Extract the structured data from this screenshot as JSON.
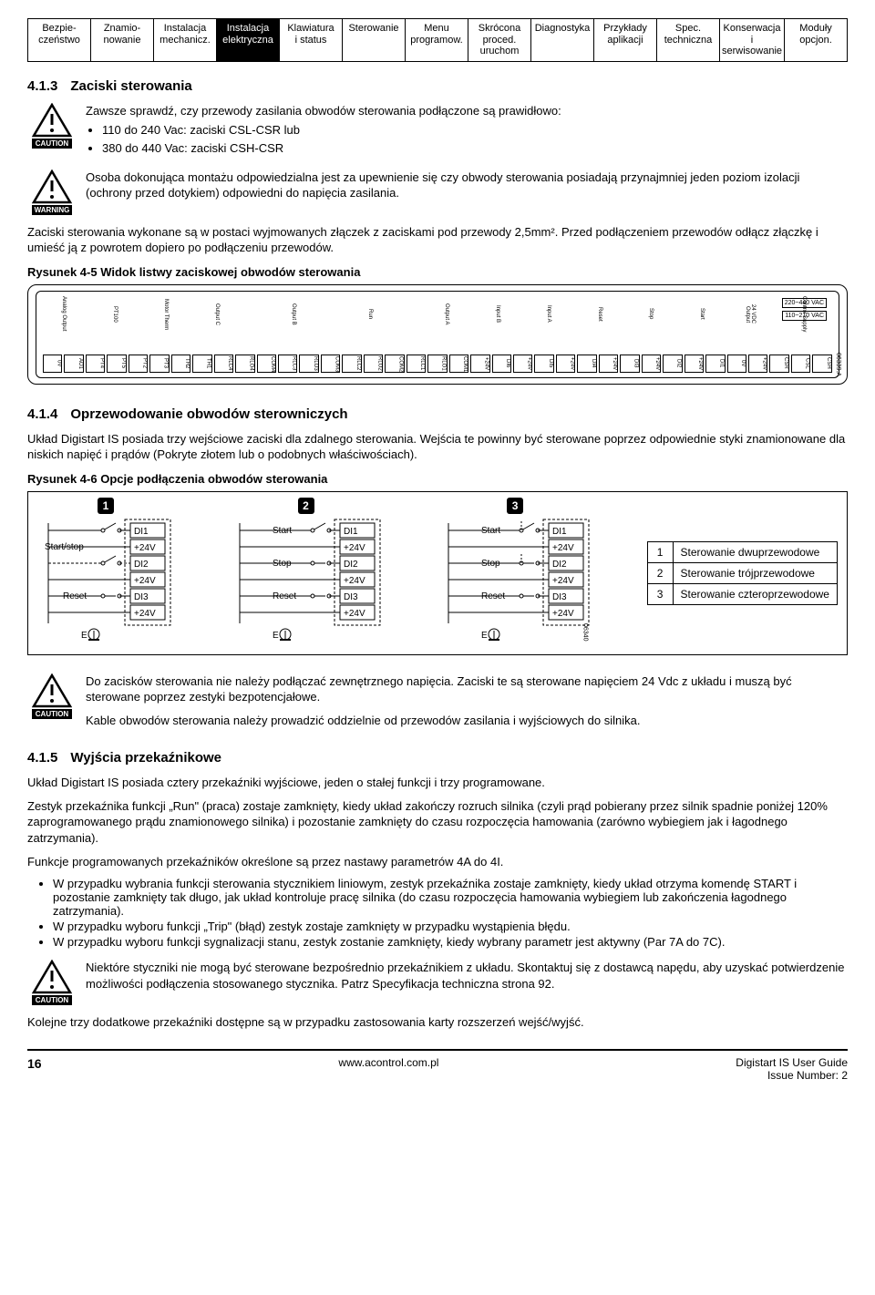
{
  "topnav": [
    {
      "l1": "Bezpie-",
      "l2": "czeństwo"
    },
    {
      "l1": "Znamio-",
      "l2": "nowanie"
    },
    {
      "l1": "Instalacja",
      "l2": "mechanicz."
    },
    {
      "l1": "Instalacja",
      "l2": "elektryczna"
    },
    {
      "l1": "Klawiatura",
      "l2": "i status"
    },
    {
      "l1": "Sterowanie",
      "l2": ""
    },
    {
      "l1": "Menu",
      "l2": "programow."
    },
    {
      "l1": "Skrócona",
      "l2": "proced. uruchom"
    },
    {
      "l1": "Diagnostyka",
      "l2": ""
    },
    {
      "l1": "Przykłady",
      "l2": "aplikacji"
    },
    {
      "l1": "Spec.",
      "l2": "techniczna"
    },
    {
      "l1": "Konserwacja i",
      "l2": "serwisowanie"
    },
    {
      "l1": "Moduły",
      "l2": "opcjon."
    }
  ],
  "active_tab_index": 3,
  "sec413": {
    "num": "4.1.3",
    "title": "Zaciski sterowania",
    "caution_label": "CAUTION",
    "warning_label": "WARNING",
    "caution_intro": "Zawsze sprawdź, czy przewody zasilania obwodów sterowania podłączone są prawidłowo:",
    "caution_b1": "110 do 240 Vac: zaciski CSL-CSR lub",
    "caution_b2": "380 do 440 Vac: zaciski CSH-CSR",
    "warning_text": "Osoba dokonująca montażu odpowiedzialna jest za upewnienie się czy obwody sterowania posiadają przynajmniej jeden poziom izolacji (ochrony przed dotykiem) odpowiedni do napięcia zasilania.",
    "para": "Zaciski sterowania wykonane są w postaci wyjmowanych złączek z zaciskami pod przewody 2,5mm². Przed podłączeniem przewodów odłącz złączkę i umieść ją z powrotem dopiero po podłączeniu przewodów.",
    "figcap": "Rysunek 4-5 Widok listwy zaciskowej obwodów sterowania"
  },
  "terminal_labels_top": [
    "Analog Output",
    "",
    "PT100",
    "",
    "Motor Therm",
    "",
    "Output C",
    "",
    "",
    "Output B",
    "",
    "",
    "Run",
    "",
    "",
    "Output A",
    "",
    "Input B",
    "",
    "Input A",
    "",
    "Reset",
    "",
    "Stop",
    "",
    "Start",
    "",
    "24 VDC Output",
    "",
    "Control Supply",
    ""
  ],
  "terminal_labels_bot": [
    "0V",
    "AO1",
    "PT4",
    "PT5",
    "PT2",
    "PT3",
    "TH2",
    "TH1",
    "RLC4",
    "RLO4",
    "COM4",
    "RLC3",
    "RLO3",
    "COM3",
    "RLC2",
    "RLO2",
    "COM2",
    "RLC1",
    "RLO1",
    "COM1",
    "+24V",
    "DI6",
    "+24V",
    "DI5",
    "+24V",
    "DI4",
    "+24V",
    "DI3",
    "+24V",
    "DI2",
    "+24V",
    "DI1",
    "0V",
    "+24V",
    "CSR",
    "CSL",
    "CSH"
  ],
  "voltage_lines": {
    "hi": "220~440 VAC",
    "lo": "110~210 VAC"
  },
  "strip_partnum": "06339.A",
  "sec414": {
    "num": "4.1.4",
    "title": "Oprzewodowanie obwodów sterowniczych",
    "intro": "Układ Digistart IS posiada trzy wejściowe zaciski dla zdalnego sterowania. Wejścia te powinny być sterowane poprzez odpowiednie styki znamionowane dla niskich napięć i prądów (Pokryte złotem lub o podobnych właściwościach).",
    "figcap": "Rysunek 4-6 Opcje podłączenia obwodów sterowania"
  },
  "circuit_terms": [
    "DI1",
    "+24V",
    "DI2",
    "+24V",
    "DI3",
    "+24V"
  ],
  "circuit_partnum": "06340.A",
  "circuit_labels": {
    "startstop": "Start/stop",
    "reset": "Reset",
    "start": "Start",
    "stop": "Stop",
    "e": "E"
  },
  "legend": [
    {
      "n": "1",
      "t": "Sterowanie dwuprzewodowe"
    },
    {
      "n": "2",
      "t": "Sterowanie trójprzewodowe"
    },
    {
      "n": "3",
      "t": "Sterowanie czteroprzewodowe"
    }
  ],
  "caution2_label": "CAUTION",
  "caution2_p1": "Do zacisków sterowania nie należy podłączać zewnętrznego napięcia. Zaciski te są sterowane napięciem 24 Vdc z układu i muszą być sterowane poprzez zestyki bezpotencjałowe.",
  "caution2_p2": "Kable obwodów sterowania należy prowadzić oddzielnie od przewodów zasilania i wyjściowych do silnika.",
  "sec415": {
    "num": "4.1.5",
    "title": "Wyjścia przekaźnikowe",
    "p1": "Układ Digistart IS posiada cztery przekaźniki wyjściowe, jeden o stałej funkcji i trzy programowane.",
    "p2": "Zestyk przekaźnika funkcji „Run\" (praca) zostaje zamknięty, kiedy układ zakończy rozruch silnika (czyli prąd pobierany przez silnik spadnie poniżej 120% zaprogramowanego prądu znamionowego silnika) i pozostanie zamknięty do czasu rozpoczęcia hamowania (zarówno wybiegiem jak i łagodnego zatrzymania).",
    "p3": "Funkcje programowanych przekaźników określone są przez nastawy parametrów 4A do 4I.",
    "b1": "W przypadku wybrania funkcji sterowania stycznikiem liniowym, zestyk przekaźnika zostaje zamknięty, kiedy układ otrzyma komendę START i pozostanie zamknięty tak długo, jak układ kontroluje pracę silnika (do czasu rozpoczęcia hamowania wybiegiem lub zakończenia łagodnego zatrzymania).",
    "b2": "W przypadku wyboru funkcji „Trip\" (błąd) zestyk zostaje zamknięty w przypadku wystąpienia błędu.",
    "b3": "W przypadku wyboru funkcji sygnalizacji stanu, zestyk zostanie zamknięty, kiedy wybrany parametr jest aktywny (Par 7A do 7C).",
    "caution_label": "CAUTION",
    "caution_text": "Niektóre styczniki nie mogą być sterowane bezpośrednio przekaźnikiem z układu. Skontaktuj się z dostawcą napędu, aby uzyskać potwierdzenie możliwości podłączenia stosowanego stycznika. Patrz Specyfikacja techniczna strona 92.",
    "p_last": "Kolejne trzy dodatkowe przekaźniki dostępne są w przypadku zastosowania karty rozszerzeń wejść/wyjść."
  },
  "footer": {
    "page": "16",
    "url": "www.acontrol.com.pl",
    "doc": "Digistart IS User Guide",
    "issue": "Issue Number: 2"
  }
}
